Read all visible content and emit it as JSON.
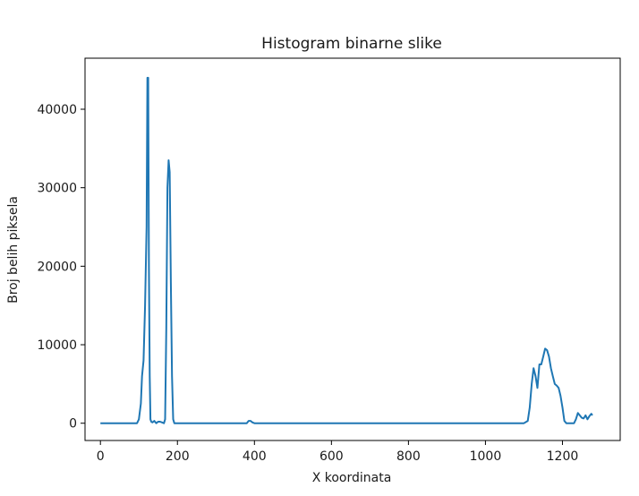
{
  "chart_data": {
    "type": "line",
    "title": "Histogram binarne slike",
    "xlabel": "X koordinata",
    "ylabel": "Broj belih piksela",
    "xlim": [
      -40,
      1350
    ],
    "ylim": [
      -2200,
      46500
    ],
    "xticks": [
      0,
      200,
      400,
      600,
      800,
      1000,
      1200
    ],
    "yticks": [
      0,
      10000,
      20000,
      30000,
      40000
    ],
    "grid": false,
    "color": "#1f77b4",
    "series": [
      {
        "x": [
          0,
          95,
          100,
          105,
          108,
          112,
          116,
          120,
          122,
          124,
          126,
          128,
          130,
          132,
          135,
          140,
          145,
          150,
          155,
          160,
          165,
          168,
          171,
          174,
          177,
          180,
          183,
          186,
          189,
          192,
          196,
          200,
          210,
          250,
          300,
          380,
          385,
          390,
          395,
          400,
          500,
          700,
          900,
          1000,
          1100,
          1110,
          1115,
          1120,
          1125,
          1130,
          1135,
          1140,
          1145,
          1150,
          1155,
          1160,
          1165,
          1170,
          1175,
          1180,
          1185,
          1190,
          1195,
          1200,
          1205,
          1210,
          1215,
          1220,
          1230,
          1235,
          1240,
          1245,
          1250,
          1255,
          1260,
          1265,
          1270,
          1275,
          1278
        ],
        "y": [
          0,
          0,
          500,
          2500,
          6000,
          8000,
          15000,
          25000,
          44000,
          44000,
          20000,
          6000,
          500,
          200,
          100,
          300,
          0,
          200,
          200,
          100,
          0,
          500,
          12000,
          30000,
          33500,
          32000,
          18000,
          6000,
          500,
          0,
          0,
          0,
          0,
          0,
          0,
          0,
          300,
          300,
          100,
          0,
          0,
          0,
          0,
          0,
          0,
          300,
          2000,
          5000,
          7000,
          6000,
          4500,
          7500,
          7500,
          8500,
          9500,
          9300,
          8500,
          7000,
          6000,
          5000,
          4800,
          4500,
          3500,
          2000,
          300,
          0,
          0,
          0,
          0,
          500,
          1300,
          1000,
          700,
          600,
          1000,
          500,
          900,
          1200,
          1000
        ]
      }
    ]
  }
}
